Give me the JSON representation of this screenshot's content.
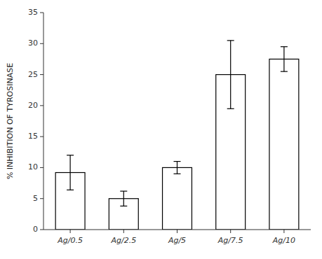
{
  "chart_data": {
    "type": "bar",
    "categories": [
      "Ag/0.5",
      "Ag/2.5",
      "Ag/5",
      "Ag/7.5",
      "Ag/10"
    ],
    "values": [
      9.2,
      5.0,
      10.0,
      25.0,
      27.5
    ],
    "errors": [
      2.8,
      1.2,
      1.0,
      5.5,
      2.0
    ],
    "color": "#ffffff",
    "ylabel": "% INHIBITION OF TYROSINASE",
    "ylim": [
      0,
      35
    ],
    "yticks": [
      0,
      5,
      10,
      15,
      20,
      25,
      30,
      35
    ],
    "grid": false
  }
}
